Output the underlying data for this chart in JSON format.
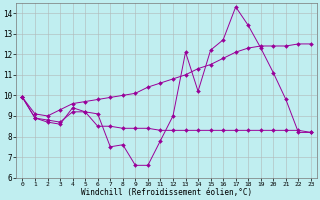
{
  "xlabel": "Windchill (Refroidissement éolien,°C)",
  "bg_color": "#c0eef0",
  "grid_color": "#b0b8b8",
  "line_color": "#990099",
  "xlim": [
    -0.5,
    23.5
  ],
  "ylim": [
    6,
    14.5
  ],
  "yticks": [
    6,
    7,
    8,
    9,
    10,
    11,
    12,
    13,
    14
  ],
  "xticks": [
    0,
    1,
    2,
    3,
    4,
    5,
    6,
    7,
    8,
    9,
    10,
    11,
    12,
    13,
    14,
    15,
    16,
    17,
    18,
    19,
    20,
    21,
    22,
    23
  ],
  "series1_x": [
    0,
    1,
    2,
    3,
    4,
    5,
    6,
    7,
    8,
    9,
    10,
    11,
    12,
    13,
    14,
    15,
    16,
    17,
    18,
    19,
    20,
    21,
    22,
    23
  ],
  "series1_y": [
    9.9,
    8.9,
    8.7,
    8.6,
    9.4,
    9.2,
    9.1,
    7.5,
    7.6,
    6.6,
    6.6,
    7.8,
    9.0,
    12.1,
    10.2,
    12.2,
    12.7,
    14.3,
    13.4,
    12.3,
    11.1,
    9.8,
    8.2,
    8.2
  ],
  "series2_x": [
    0,
    1,
    2,
    3,
    4,
    5,
    6,
    7,
    8,
    9,
    10,
    11,
    12,
    13,
    14,
    15,
    16,
    17,
    18,
    19,
    20,
    21,
    22,
    23
  ],
  "series2_y": [
    9.9,
    8.9,
    8.8,
    8.7,
    9.2,
    9.2,
    8.5,
    8.5,
    8.4,
    8.4,
    8.4,
    8.3,
    8.3,
    8.3,
    8.3,
    8.3,
    8.3,
    8.3,
    8.3,
    8.3,
    8.3,
    8.3,
    8.3,
    8.2
  ],
  "series3_x": [
    0,
    1,
    2,
    3,
    4,
    5,
    6,
    7,
    8,
    9,
    10,
    11,
    12,
    13,
    14,
    15,
    16,
    17,
    18,
    19,
    20,
    21,
    22,
    23
  ],
  "series3_y": [
    9.9,
    9.1,
    9.0,
    9.3,
    9.6,
    9.7,
    9.8,
    9.9,
    10.0,
    10.1,
    10.4,
    10.6,
    10.8,
    11.0,
    11.3,
    11.5,
    11.8,
    12.1,
    12.3,
    12.4,
    12.4,
    12.4,
    12.5,
    12.5
  ]
}
